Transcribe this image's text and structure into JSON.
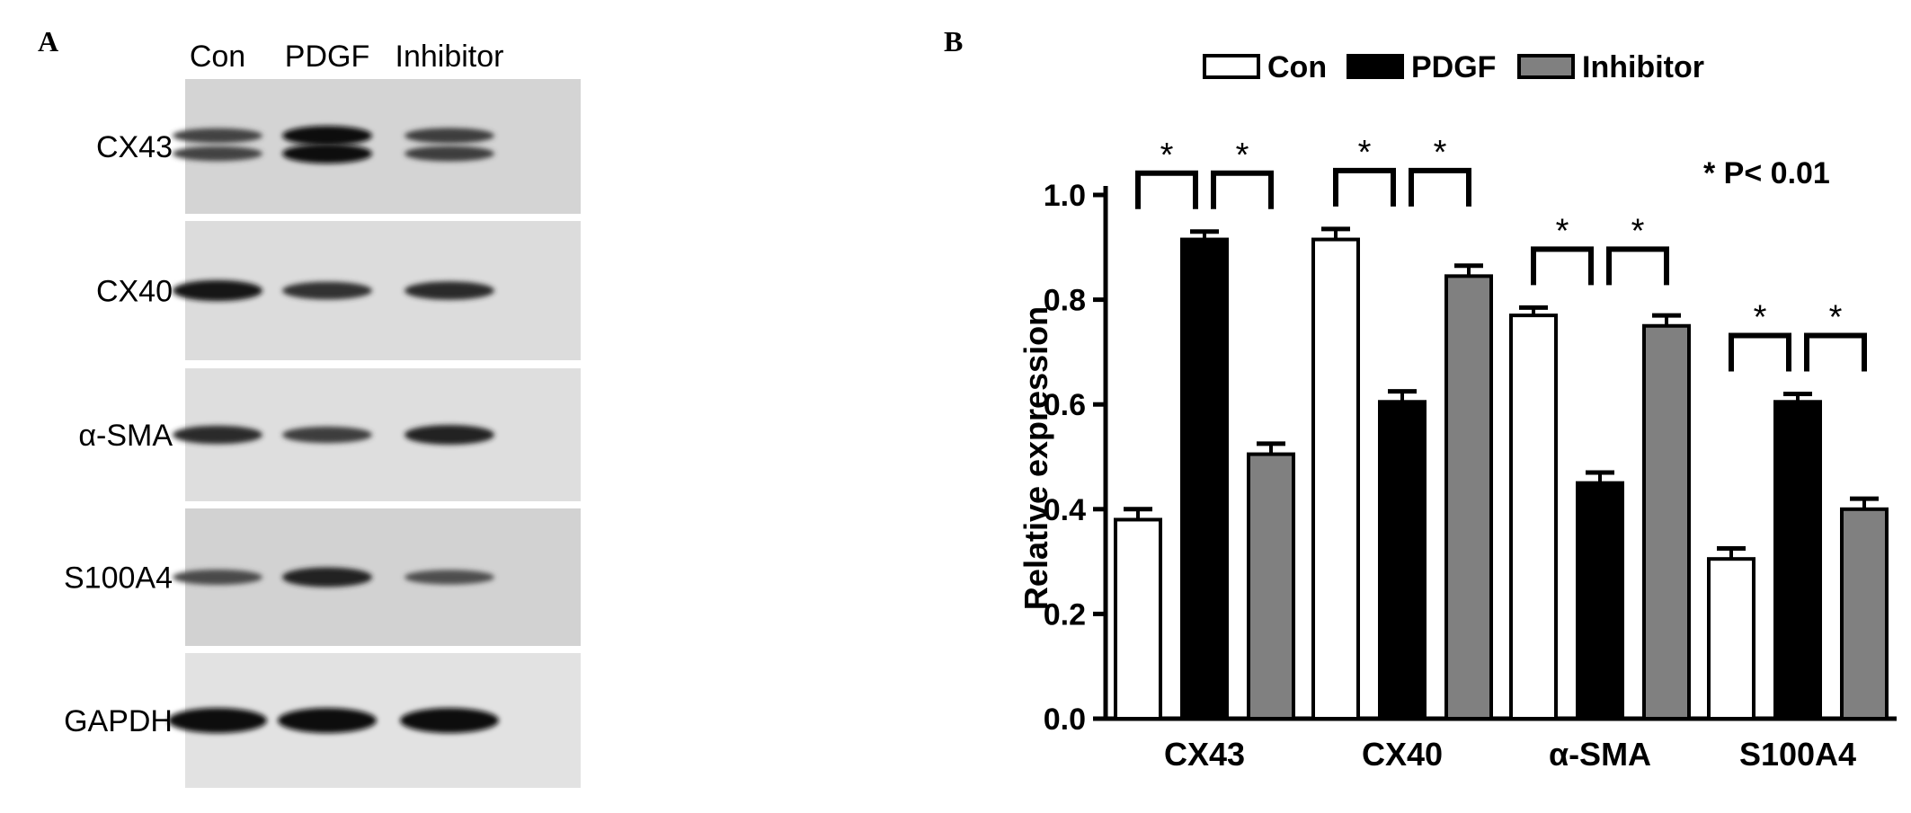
{
  "panel_a": {
    "letter": "A",
    "lanes": [
      "Con",
      "PDGF",
      "Inhibitor"
    ],
    "rows": [
      {
        "label": "CX43",
        "band_intensity": [
          0.55,
          1.0,
          0.6
        ]
      },
      {
        "label": "CX40",
        "band_intensity": [
          0.95,
          0.7,
          0.75
        ]
      },
      {
        "label": "α-SMA",
        "band_intensity": [
          0.75,
          0.6,
          0.85
        ]
      },
      {
        "label": "S100A4",
        "band_intensity": [
          0.5,
          0.85,
          0.45
        ]
      },
      {
        "label": "GAPDH",
        "band_intensity": [
          1.0,
          1.0,
          1.0
        ]
      }
    ]
  },
  "panel_b": {
    "letter": "B"
  },
  "chart_data": {
    "type": "bar",
    "categories": [
      "CX43",
      "CX40",
      "α-SMA",
      "S100A4"
    ],
    "series": [
      {
        "name": "Con",
        "values": [
          0.38,
          0.915,
          0.77,
          0.305
        ],
        "errors": [
          0.02,
          0.02,
          0.015,
          0.02
        ],
        "color": "#ffffff"
      },
      {
        "name": "PDGF",
        "values": [
          0.915,
          0.605,
          0.45,
          0.605
        ],
        "errors": [
          0.015,
          0.02,
          0.02,
          0.015
        ],
        "color": "#000000"
      },
      {
        "name": "Inhibitor",
        "values": [
          0.505,
          0.845,
          0.75,
          0.4
        ],
        "errors": [
          0.02,
          0.02,
          0.02,
          0.02
        ],
        "color": "#808080"
      }
    ],
    "ylabel": "Relative expression",
    "xlabel": "",
    "ylim": [
      0.0,
      1.0
    ],
    "yticks": [
      "0.0",
      "0.2",
      "0.4",
      "0.6",
      "0.8",
      "1.0"
    ],
    "significance_marker": "*",
    "significance_note": "* P< 0.01",
    "legend_position": "top"
  }
}
